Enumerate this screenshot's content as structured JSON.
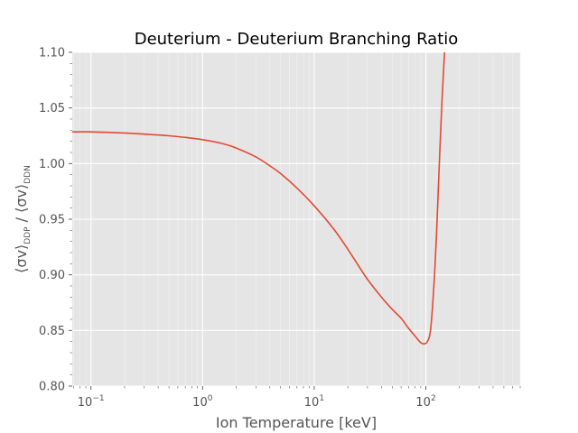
{
  "chart_data": {
    "type": "line",
    "title": "Deuterium - Deuterium Branching Ratio",
    "xlabel": "Ion Temperature [keV]",
    "ylabel": "⟨σv⟩DDP / ⟨σv⟩DDN",
    "ylabel_parts": {
      "num": "⟨σv⟩",
      "num_sub": "DDP",
      "sep": " / ",
      "den": "⟨σv⟩",
      "den_sub": "DDN"
    },
    "x_scale": "log",
    "xlim": [
      0.068,
      700
    ],
    "ylim": [
      0.8,
      1.1
    ],
    "x_ticks": [
      {
        "value": 0.1,
        "base": "10",
        "exp": "−1"
      },
      {
        "value": 1,
        "base": "10",
        "exp": "0"
      },
      {
        "value": 10,
        "base": "10",
        "exp": "1"
      },
      {
        "value": 100,
        "base": "10",
        "exp": "2"
      }
    ],
    "y_ticks": [
      "0.80",
      "0.85",
      "0.90",
      "0.95",
      "1.00",
      "1.05",
      "1.10"
    ],
    "grid": true,
    "legend": "none",
    "series": [
      {
        "color": "#E24A33",
        "points": [
          [
            0.068,
            1.0285
          ],
          [
            0.1,
            1.0285
          ],
          [
            0.2,
            1.0275
          ],
          [
            0.3,
            1.0265
          ],
          [
            0.5,
            1.025
          ],
          [
            0.7,
            1.0235
          ],
          [
            1.0,
            1.0215
          ],
          [
            1.5,
            1.018
          ],
          [
            2.0,
            1.014
          ],
          [
            3.0,
            1.006
          ],
          [
            4.0,
            0.998
          ],
          [
            5.0,
            0.991
          ],
          [
            7.0,
            0.978
          ],
          [
            10.0,
            0.962
          ],
          [
            15.0,
            0.941
          ],
          [
            20.0,
            0.923
          ],
          [
            25.0,
            0.908
          ],
          [
            30.0,
            0.896
          ],
          [
            40.0,
            0.88
          ],
          [
            50.0,
            0.869
          ],
          [
            60.0,
            0.861
          ],
          [
            70.0,
            0.852
          ],
          [
            80.0,
            0.845
          ],
          [
            90.0,
            0.839
          ],
          [
            97.0,
            0.838
          ],
          [
            103.0,
            0.84
          ],
          [
            110.0,
            0.85
          ],
          [
            118.0,
            0.89
          ],
          [
            125.0,
            0.94
          ],
          [
            132.0,
            1.0
          ],
          [
            140.0,
            1.06
          ],
          [
            147.0,
            1.1
          ]
        ]
      }
    ]
  }
}
